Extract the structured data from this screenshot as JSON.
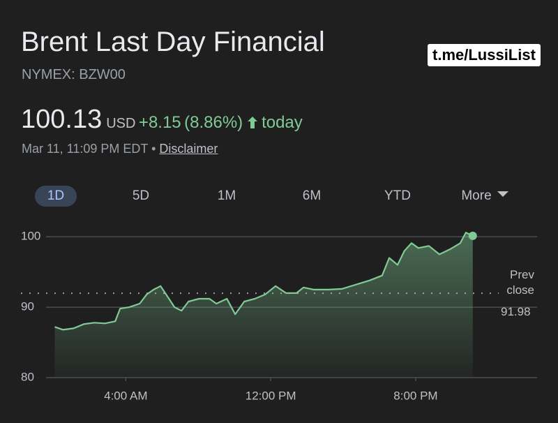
{
  "header": {
    "title": "Brent Last Day Financial",
    "subtitle": "NYMEX: BZW00",
    "price": "100.13",
    "currency": "USD",
    "change": "+8.15",
    "change_percent": "(8.86%)",
    "period": "today",
    "timestamp": "Mar 11, 11:09 PM EDT",
    "disclaimer": "Disclaimer",
    "watermark": "t.me/LussiList"
  },
  "tabs": [
    "1D",
    "5D",
    "1M",
    "6M",
    "YTD",
    "More"
  ],
  "chart_data": {
    "type": "line",
    "x": [
      0.08,
      0.54,
      1.12,
      1.69,
      2.27,
      2.85,
      3.42,
      3.69,
      4.19,
      4.77,
      5.15,
      5.54,
      5.92,
      6.31,
      6.69,
      7.08,
      7.46,
      8.04,
      8.62,
      9.0,
      9.58,
      10.04,
      10.54,
      11.12,
      11.69,
      12.27,
      12.85,
      13.42,
      13.81,
      14.38,
      15.15,
      15.92,
      16.69,
      17.46,
      18.15,
      18.54,
      19.0,
      19.38,
      19.77,
      20.15,
      20.73,
      21.31,
      21.88,
      22.46,
      22.77,
      23.15
    ],
    "series": [
      {
        "name": "Brent Last Day Financial",
        "color": "#81c995",
        "values": [
          87.2,
          86.8,
          87.0,
          87.6,
          87.8,
          87.7,
          88.0,
          89.8,
          90.0,
          90.5,
          91.8,
          92.5,
          93.0,
          91.5,
          90.0,
          89.5,
          90.8,
          91.2,
          91.2,
          90.5,
          91.2,
          89.0,
          90.8,
          91.2,
          91.8,
          93.0,
          92.0,
          92.0,
          92.8,
          92.5,
          92.5,
          92.6,
          93.2,
          93.8,
          94.5,
          97.0,
          96.0,
          98.0,
          99.1,
          98.4,
          98.7,
          97.5,
          98.2,
          99.1,
          100.6,
          100.13
        ]
      }
    ],
    "xlim": [
      -0.4,
      26.7
    ],
    "ylim": [
      80,
      102
    ],
    "xticks": [
      {
        "value": 4,
        "label": "4:00 AM"
      },
      {
        "value": 12,
        "label": "12:00 PM"
      },
      {
        "value": 20,
        "label": "8:00 PM"
      }
    ],
    "yticks": [
      80,
      90,
      100
    ],
    "grid": true,
    "prev_close": {
      "label": "Prev close",
      "value": 91.98
    }
  }
}
